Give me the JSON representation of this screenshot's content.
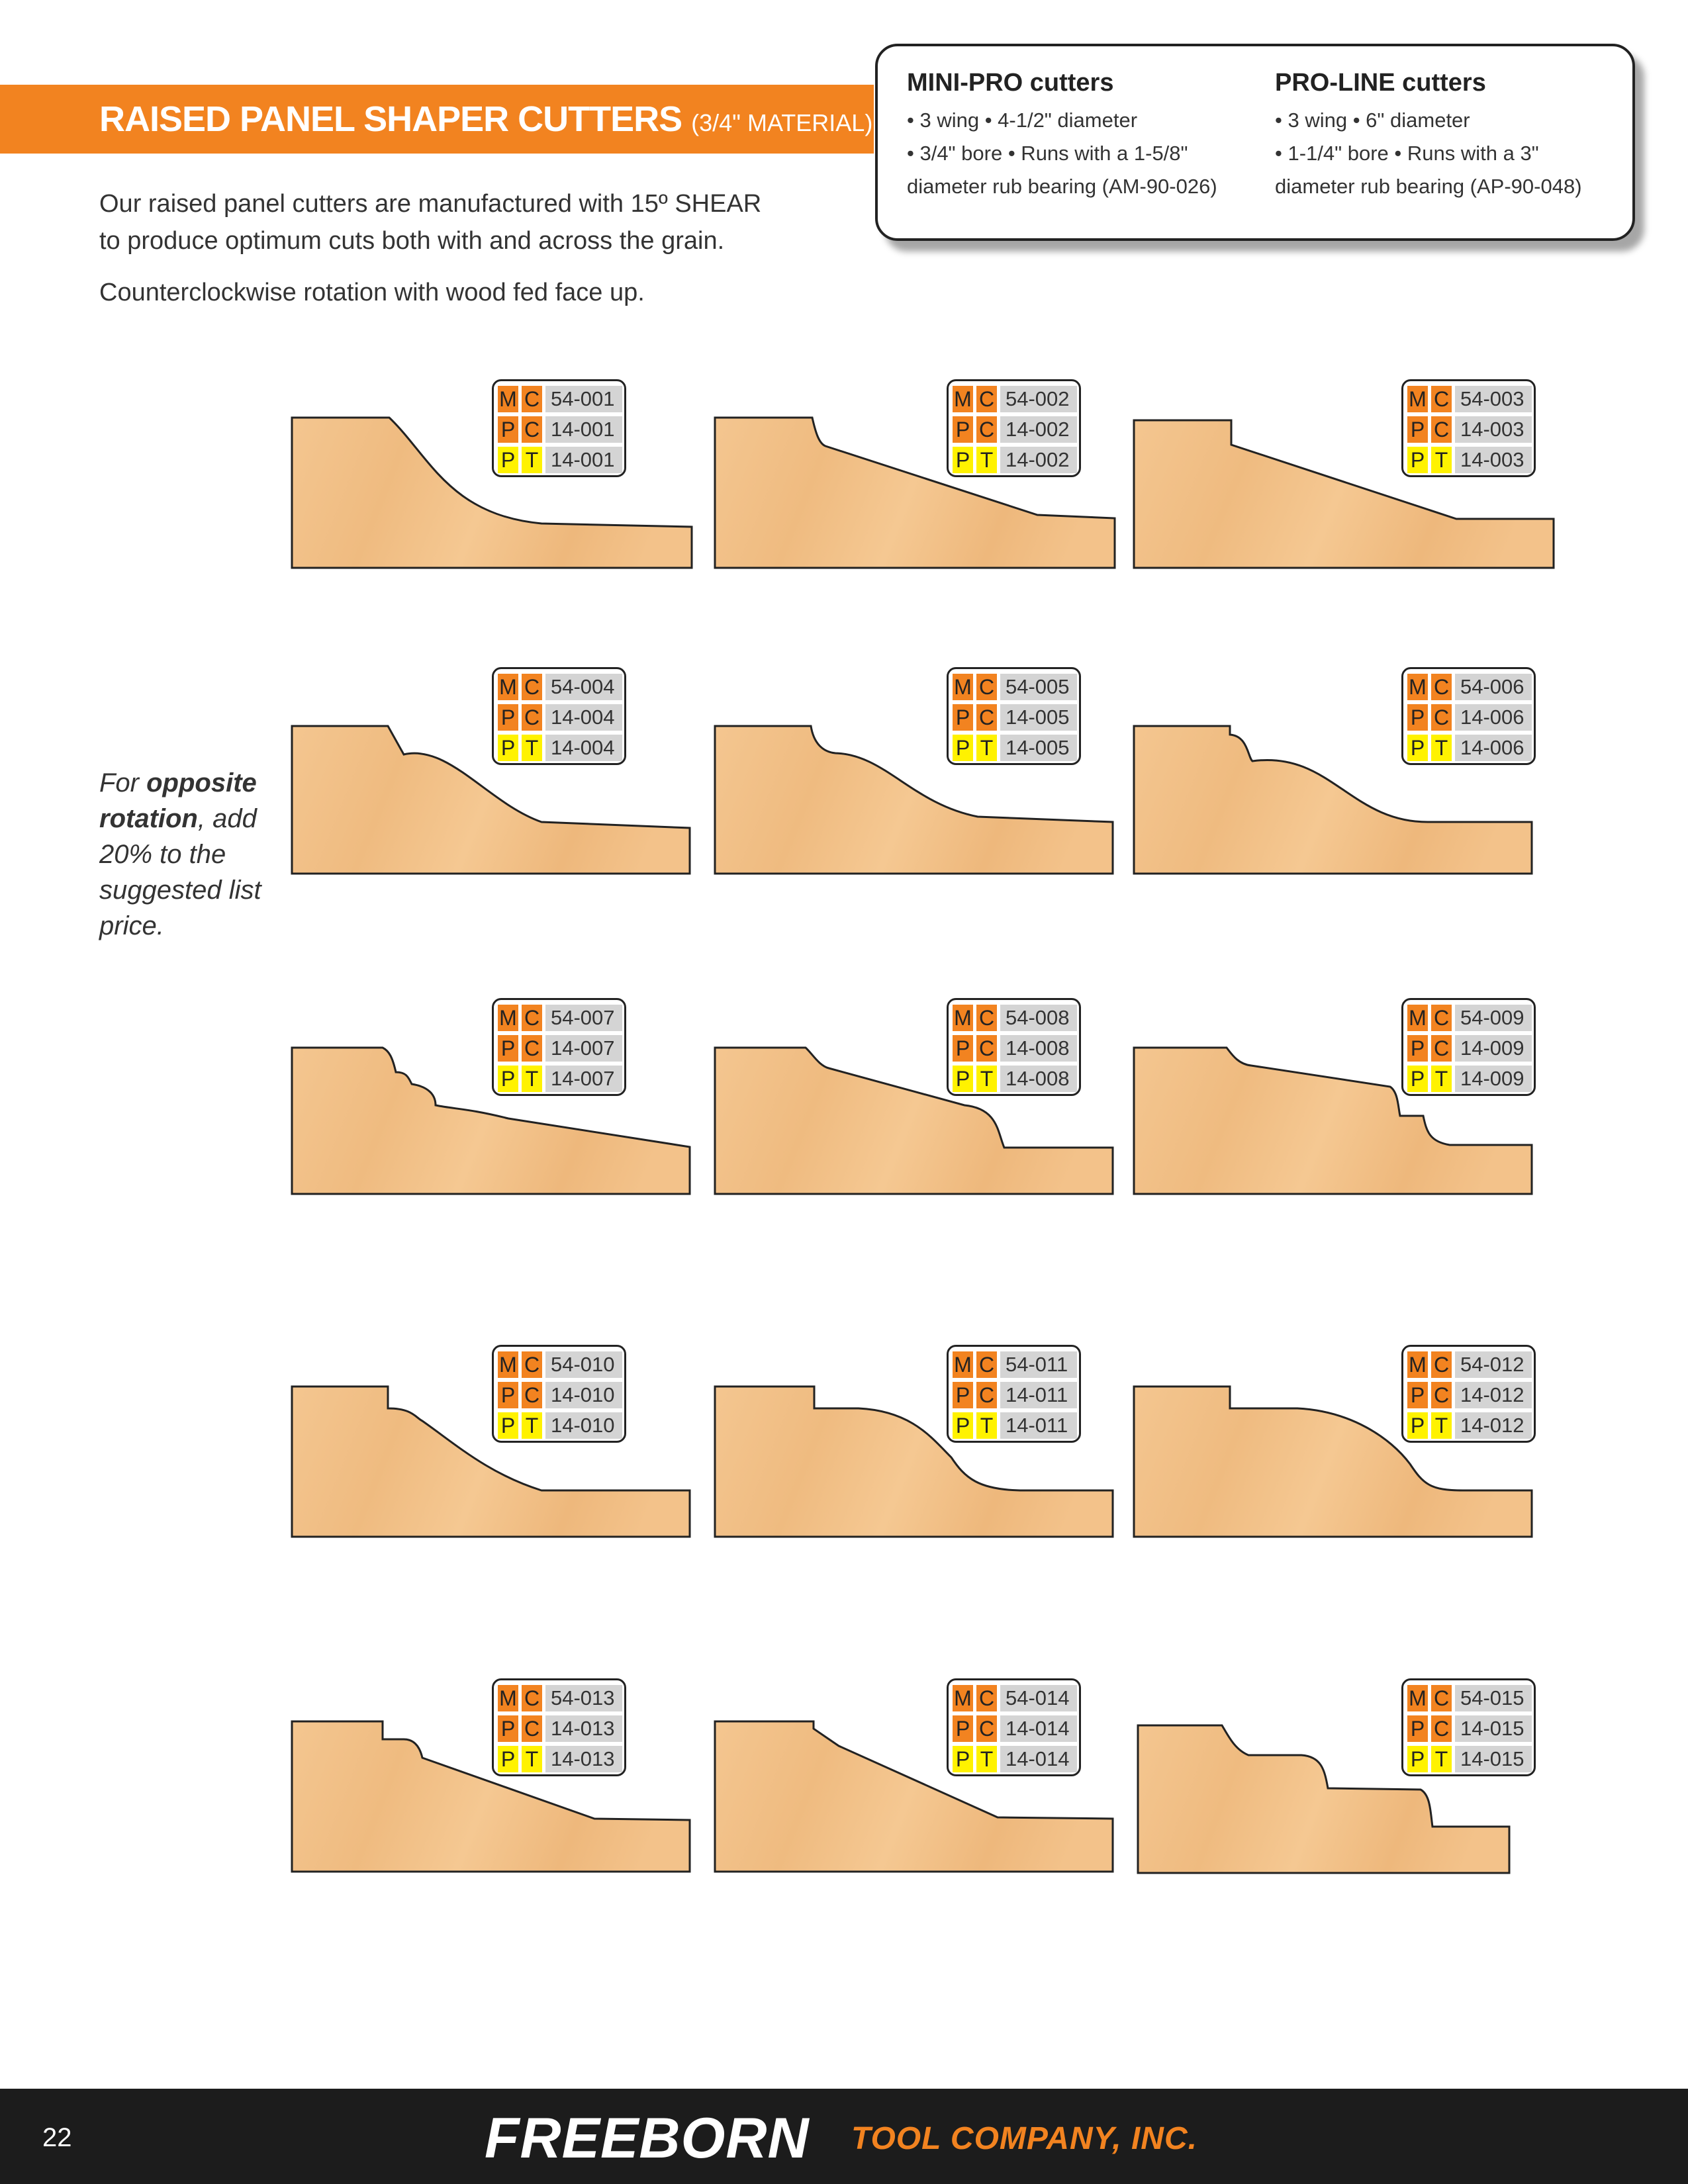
{
  "header": {
    "title": "RAISED PANEL SHAPER CUTTERS",
    "subtitle": "(3/4\" MATERIAL)"
  },
  "intro": {
    "line1": "Our raised panel cutters are manufactured with 15º SHEAR",
    "line2": "to produce optimum cuts both with and across the grain.",
    "line3": "Counterclockwise rotation with wood fed face up."
  },
  "callout": {
    "left": {
      "title": "MINI-PRO cutters",
      "line1": "• 3 wing  • 4-1/2\" diameter",
      "line2": "• 3/4\" bore  • Runs with a 1-5/8\"",
      "line3": "diameter rub bearing (AM-90-026)"
    },
    "right": {
      "title": "PRO-LINE cutters",
      "line1": "• 3 wing  • 6\" diameter",
      "line2": "• 1-1/4\" bore  • Runs with a 3\"",
      "line3": "diameter rub bearing (AP-90-048)"
    }
  },
  "side_note": {
    "t1": "For ",
    "b1": "opposite rotation",
    "t2": ", add 20% to the suggested list price."
  },
  "code_letters": {
    "row1": [
      "M",
      "C"
    ],
    "row2": [
      "P",
      "C"
    ],
    "row3": [
      "P",
      "T"
    ]
  },
  "cutters": [
    {
      "mc": "54-001",
      "pc": "14-001",
      "pt": "14-001"
    },
    {
      "mc": "54-002",
      "pc": "14-002",
      "pt": "14-002"
    },
    {
      "mc": "54-003",
      "pc": "14-003",
      "pt": "14-003"
    },
    {
      "mc": "54-004",
      "pc": "14-004",
      "pt": "14-004"
    },
    {
      "mc": "54-005",
      "pc": "14-005",
      "pt": "14-005"
    },
    {
      "mc": "54-006",
      "pc": "14-006",
      "pt": "14-006"
    },
    {
      "mc": "54-007",
      "pc": "14-007",
      "pt": "14-007"
    },
    {
      "mc": "54-008",
      "pc": "14-008",
      "pt": "14-008"
    },
    {
      "mc": "54-009",
      "pc": "14-009",
      "pt": "14-009"
    },
    {
      "mc": "54-010",
      "pc": "14-010",
      "pt": "14-010"
    },
    {
      "mc": "54-011",
      "pc": "14-011",
      "pt": "14-011"
    },
    {
      "mc": "54-012",
      "pc": "14-012",
      "pt": "14-012"
    },
    {
      "mc": "54-013",
      "pc": "14-013",
      "pt": "14-013"
    },
    {
      "mc": "54-014",
      "pc": "14-014",
      "pt": "14-014"
    },
    {
      "mc": "54-015",
      "pc": "14-015",
      "pt": "14-015"
    }
  ],
  "colors": {
    "accent": "#f28320",
    "highlight": "#fff200",
    "wood": "#f2c089",
    "footer": "#1c1c1c"
  },
  "footer": {
    "page_number": "22",
    "brand": "FREEBORN",
    "brand_sub": "TOOL COMPANY, INC."
  }
}
